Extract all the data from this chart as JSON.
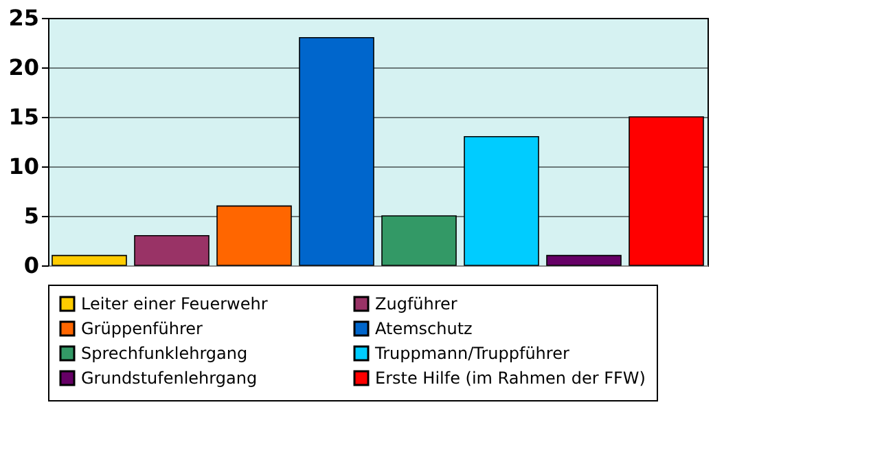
{
  "chart_data": {
    "type": "bar",
    "categories": [
      null
    ],
    "series": [
      {
        "name": "Leiter einer Feuerwehr",
        "color": "#ffcc00",
        "values": [
          1
        ]
      },
      {
        "name": "Zugführer",
        "color": "#993366",
        "values": [
          3
        ]
      },
      {
        "name": "Grüppenführer",
        "color": "#ff6600",
        "values": [
          6
        ]
      },
      {
        "name": "Atemschutz",
        "color": "#0066cc",
        "values": [
          23
        ]
      },
      {
        "name": "Sprechfunklehrgang",
        "color": "#339966",
        "values": [
          5
        ]
      },
      {
        "name": "Truppmann/Truppführer",
        "color": "#00ccff",
        "values": [
          13
        ]
      },
      {
        "name": "Grundstufenlehrgang",
        "color": "#660066",
        "values": [
          1
        ]
      },
      {
        "name": "Erste Hilfe (im Rahmen der FFW)",
        "color": "#ff0000",
        "values": [
          15
        ]
      }
    ],
    "ylim": [
      0,
      25
    ],
    "yticks": [
      0,
      5,
      10,
      15,
      20,
      25
    ],
    "grid": "y",
    "legend": "bottom"
  }
}
